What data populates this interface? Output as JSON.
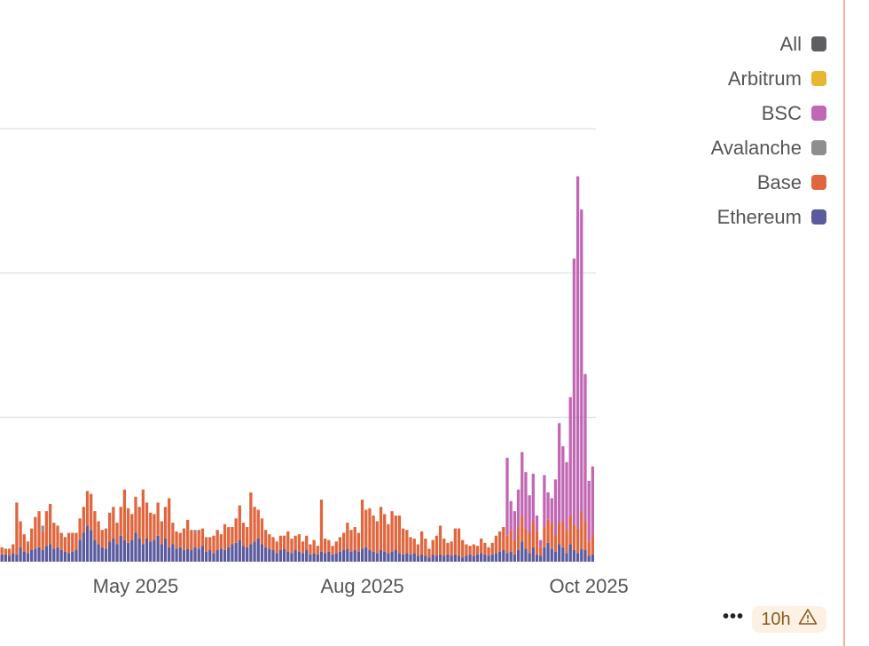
{
  "chart_data": {
    "type": "bar",
    "stacked": true,
    "title": "",
    "xlabel": "",
    "ylabel": "",
    "ylim": [
      0,
      30
    ],
    "grid": true,
    "gridlines": [
      10,
      20,
      30
    ],
    "legend_placement": "top-right",
    "bar_count": 160,
    "x_ticks": [
      {
        "label": "May 2025",
        "index": 36
      },
      {
        "label": "Aug 2025",
        "index": 97
      },
      {
        "label": "Oct 2025",
        "index": 158
      }
    ],
    "series": [
      {
        "name": "Ethereum",
        "color": "#5a5a9e",
        "values": [
          0.5,
          0.5,
          0.4,
          0.6,
          0.5,
          1.0,
          0.7,
          0.6,
          0.8,
          0.9,
          1.0,
          0.8,
          1.1,
          1.2,
          0.9,
          1.0,
          0.8,
          0.7,
          0.6,
          0.7,
          0.8,
          1.5,
          2.0,
          2.5,
          2.2,
          1.5,
          1.2,
          1.0,
          0.9,
          1.4,
          1.6,
          1.2,
          1.8,
          1.5,
          1.3,
          1.5,
          2.0,
          1.6,
          1.2,
          1.6,
          1.4,
          1.5,
          1.8,
          1.2,
          1.6,
          1.0,
          1.2,
          0.9,
          1.0,
          0.8,
          0.9,
          0.8,
          1.0,
          0.9,
          1.1,
          0.7,
          0.8,
          0.6,
          0.8,
          0.9,
          0.8,
          1.0,
          1.2,
          1.3,
          1.5,
          1.1,
          1.0,
          1.2,
          1.4,
          1.6,
          1.2,
          1.0,
          0.9,
          0.8,
          0.6,
          0.8,
          0.9,
          0.7,
          0.6,
          0.8,
          0.7,
          0.6,
          0.8,
          0.5,
          0.6,
          0.5,
          0.7,
          0.6,
          0.7,
          0.5,
          0.6,
          0.7,
          0.8,
          0.9,
          0.7,
          0.8,
          0.7,
          0.9,
          1.0,
          0.8,
          0.7,
          0.6,
          0.8,
          0.7,
          0.6,
          0.7,
          0.8,
          0.6,
          0.5,
          0.6,
          0.5,
          0.6,
          0.4,
          0.5,
          0.4,
          0.3,
          0.5,
          0.4,
          0.5,
          0.4,
          0.5,
          0.4,
          0.5,
          0.4,
          0.3,
          0.4,
          0.5,
          0.4,
          0.5,
          0.6,
          0.5,
          0.4,
          0.5,
          0.6,
          0.7,
          0.8,
          0.6,
          0.7,
          0.5,
          0.8,
          1.4,
          0.9,
          0.6,
          1.0,
          0.5,
          0.4,
          1.0,
          1.3,
          0.9,
          0.7,
          1.2,
          1.0,
          0.6,
          1.2,
          0.8,
          0.6,
          0.9,
          0.8,
          0.4,
          0.5
        ]
      },
      {
        "name": "Base",
        "color": "#e0663e",
        "values": [
          0.5,
          0.4,
          0.5,
          0.6,
          3.6,
          1.8,
          1.2,
          0.8,
          1.5,
          2.2,
          2.5,
          1.3,
          2.4,
          2.8,
          1.8,
          1.5,
          1.2,
          1.0,
          1.4,
          1.3,
          1.2,
          1.5,
          1.8,
          2.4,
          2.5,
          2.0,
          1.6,
          1.2,
          1.4,
          2.0,
          2.2,
          1.5,
          2.0,
          3.5,
          2.4,
          1.8,
          2.5,
          2.2,
          3.8,
          2.5,
          2.0,
          1.8,
          2.3,
          1.6,
          2.2,
          3.4,
          1.5,
          1.2,
          1.0,
          1.5,
          2.0,
          1.4,
          1.0,
          1.3,
          1.2,
          1.0,
          0.9,
          1.2,
          1.4,
          1.0,
          1.8,
          1.4,
          1.2,
          1.7,
          2.4,
          1.6,
          1.4,
          3.6,
          2.4,
          2.0,
          1.8,
          1.2,
          1.0,
          0.9,
          0.8,
          1.0,
          0.9,
          1.4,
          1.0,
          1.0,
          1.2,
          0.8,
          1.0,
          0.7,
          0.9,
          0.6,
          3.6,
          1.0,
          0.8,
          0.6,
          0.8,
          1.0,
          1.2,
          1.8,
          1.5,
          1.6,
          1.3,
          3.4,
          2.6,
          2.9,
          2.5,
          2.2,
          3.0,
          2.6,
          2.0,
          2.8,
          2.4,
          2.6,
          1.8,
          1.6,
          1.2,
          1.0,
          0.8,
          1.6,
          1.2,
          0.6,
          1.0,
          1.4,
          2.0,
          1.2,
          0.8,
          1.0,
          1.8,
          1.9,
          1.2,
          0.8,
          0.6,
          0.8,
          0.6,
          1.0,
          0.8,
          0.6,
          0.8,
          1.2,
          1.4,
          1.6,
          1.2,
          1.5,
          1.0,
          1.6,
          1.8,
          1.4,
          1.4,
          1.8,
          1.6,
          0.6,
          1.4,
          1.6,
          1.8,
          1.2,
          1.5,
          1.8,
          1.6,
          2.0,
          1.8,
          1.7,
          2.6,
          2.0,
          1.0,
          1.4
        ]
      },
      {
        "name": "Avalanche",
        "color": "#8e8e8e",
        "values": [
          0,
          0,
          0,
          0,
          0,
          0,
          0,
          0,
          0,
          0,
          0,
          0.4,
          0,
          0,
          0,
          0,
          0,
          0,
          0,
          0,
          0,
          0,
          0,
          0,
          0,
          0,
          0,
          0,
          0,
          0,
          0,
          0,
          0,
          0,
          0,
          0,
          0,
          0,
          0,
          0,
          0,
          0,
          0,
          0,
          0,
          0,
          0,
          0,
          0,
          0,
          0,
          0,
          0.2,
          0,
          0,
          0,
          0,
          0,
          0,
          0,
          0,
          0,
          0,
          0,
          0,
          0,
          0,
          0,
          0,
          0,
          0,
          0,
          0,
          0,
          0,
          0,
          0,
          0,
          0,
          0,
          0,
          0,
          0,
          0,
          0,
          0,
          0,
          0,
          0,
          0,
          0,
          0,
          0,
          0,
          0,
          0,
          0,
          0,
          0,
          0,
          0,
          0,
          0,
          0,
          0,
          0,
          0,
          0,
          0,
          0,
          0,
          0,
          0,
          0,
          0,
          0,
          0,
          0,
          0,
          0,
          0,
          0,
          0,
          0,
          0,
          0,
          0,
          0,
          0,
          0,
          0,
          0,
          0,
          0,
          0,
          0,
          0,
          0,
          0,
          0,
          0,
          0,
          0,
          0,
          0,
          0,
          0,
          0,
          0,
          0,
          0,
          0,
          0,
          0,
          0,
          0,
          0,
          0,
          0,
          0
        ]
      },
      {
        "name": "BSC",
        "color": "#c267b4",
        "values": [
          0,
          0,
          0,
          0,
          0,
          0,
          0,
          0,
          0,
          0,
          0,
          0,
          0,
          0,
          0,
          0,
          0,
          0,
          0,
          0,
          0,
          0,
          0,
          0,
          0,
          0,
          0,
          0,
          0,
          0,
          0,
          0,
          0,
          0,
          0,
          0,
          0,
          0,
          0,
          0,
          0,
          0,
          0,
          0,
          0,
          0,
          0,
          0,
          0,
          0,
          0,
          0,
          0,
          0,
          0,
          0,
          0,
          0,
          0,
          0,
          0,
          0,
          0,
          0,
          0,
          0,
          0,
          0,
          0,
          0,
          0,
          0,
          0,
          0,
          0,
          0,
          0,
          0,
          0,
          0,
          0,
          0,
          0,
          0,
          0,
          0,
          0,
          0,
          0,
          0,
          0,
          0,
          0,
          0,
          0,
          0,
          0,
          0,
          0,
          0,
          0,
          0,
          0,
          0,
          0,
          0,
          0,
          0,
          0,
          0,
          0,
          0,
          0,
          0,
          0,
          0,
          0,
          0,
          0,
          0,
          0,
          0,
          0,
          0,
          0,
          0,
          0,
          0,
          0,
          0,
          0,
          0,
          0,
          0,
          0,
          0,
          5.4,
          2.0,
          2.0,
          2.6,
          4.4,
          3.9,
          2.6,
          3.3,
          1.1,
          0.5,
          3.6,
          1.9,
          1.7,
          3.8,
          6.9,
          5.2,
          4.7,
          8.2,
          18.4,
          24.4,
          20.9,
          10.2,
          4.2,
          4.7
        ]
      },
      {
        "name": "Arbitrum",
        "color": "#e8b630",
        "values": []
      }
    ]
  },
  "legend": [
    {
      "label": "All",
      "color": "#5f5f63"
    },
    {
      "label": "Arbitrum",
      "color": "#e8b630"
    },
    {
      "label": "BSC",
      "color": "#c267b4"
    },
    {
      "label": "Avalanche",
      "color": "#8e8e8e"
    },
    {
      "label": "Base",
      "color": "#e0663e"
    },
    {
      "label": "Ethereum",
      "color": "#5a5a9e"
    }
  ],
  "footer": {
    "more_label": "•••",
    "refresh_badge": "10h",
    "warning_icon": "warning-icon"
  }
}
